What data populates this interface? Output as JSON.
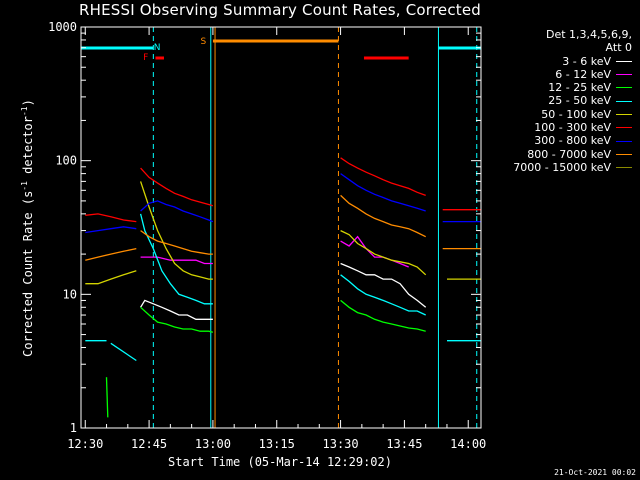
{
  "header": {
    "title": "RHESSI Observing Summary Count Rates, Corrected",
    "footer_date": "21-Oct-2021 00:02"
  },
  "legend": {
    "det_line1": "Det 1,3,4,5,6,9,",
    "det_line2": "Att 0",
    "items": [
      {
        "label": "3 - 6 keV",
        "color": "#ffffff"
      },
      {
        "label": "6 - 12 keV",
        "color": "#ff00ff"
      },
      {
        "label": "12 - 25 keV",
        "color": "#00ff00"
      },
      {
        "label": "25 - 50 keV",
        "color": "#00ffff"
      },
      {
        "label": "50 - 100 keV",
        "color": "#d4d400"
      },
      {
        "label": "100 - 300 keV",
        "color": "#ff0000"
      },
      {
        "label": "300 - 800 keV",
        "color": "#0000ff"
      },
      {
        "label": "800 - 7000 keV",
        "color": "#ff8c00"
      },
      {
        "label": "7000 - 15000 keV",
        "color": "#8b8b00"
      }
    ]
  },
  "chart_data": {
    "type": "line",
    "title": "RHESSI Observing Summary Count Rates, Corrected",
    "xlabel": "Start Time (05-Mar-14 12:29:02)",
    "ylabel": "Corrected Count Rate (s⁻¹ detector⁻¹)",
    "ylabel_main": "Corrected Count Rate (s",
    "ylabel_sup1": "-1",
    "ylabel_mid": " detector",
    "ylabel_sup2": "-1",
    "ylabel_end": ")",
    "yscale": "log",
    "ylim": [
      1,
      1000
    ],
    "xlim_minutes": [
      -1,
      93
    ],
    "x_ticks": [
      {
        "m": 0,
        "label": "12:30"
      },
      {
        "m": 15,
        "label": "12:45"
      },
      {
        "m": 30,
        "label": "13:00"
      },
      {
        "m": 45,
        "label": "13:15"
      },
      {
        "m": 60,
        "label": "13:30"
      },
      {
        "m": 75,
        "label": "13:45"
      },
      {
        "m": 90,
        "label": "14:00"
      }
    ],
    "y_ticks": [
      {
        "v": 1,
        "label": "1"
      },
      {
        "v": 10,
        "label": "10"
      },
      {
        "v": 100,
        "label": "100"
      },
      {
        "v": 1000,
        "label": "1000"
      }
    ],
    "x_time_note": "x values are minutes after 12:30",
    "series": [
      {
        "name": "3 - 6 keV",
        "color": "#ffffff",
        "segments": [
          [
            [
              13,
              8
            ],
            [
              14,
              9
            ],
            [
              16,
              8.5
            ],
            [
              18,
              8
            ],
            [
              20,
              7.5
            ],
            [
              22,
              7
            ],
            [
              24,
              7
            ],
            [
              26,
              6.5
            ],
            [
              28,
              6.5
            ],
            [
              30,
              6.5
            ]
          ],
          [
            [
              60,
              17
            ],
            [
              62,
              16
            ],
            [
              64,
              15
            ],
            [
              66,
              14
            ],
            [
              68,
              14
            ],
            [
              70,
              13
            ],
            [
              72,
              13
            ],
            [
              74,
              12
            ],
            [
              76,
              10
            ],
            [
              78,
              9
            ],
            [
              80,
              8
            ]
          ]
        ]
      },
      {
        "name": "6 - 12 keV",
        "color": "#ff00ff",
        "segments": [
          [
            [
              13,
              19
            ],
            [
              15,
              19
            ],
            [
              17,
              19
            ],
            [
              20,
              18
            ],
            [
              23,
              18
            ],
            [
              26,
              18
            ],
            [
              28,
              17
            ],
            [
              30,
              17
            ]
          ],
          [
            [
              60,
              25
            ],
            [
              62,
              23
            ],
            [
              64,
              27
            ],
            [
              66,
              22
            ],
            [
              68,
              19
            ],
            [
              70,
              19
            ],
            [
              72,
              18
            ],
            [
              74,
              17
            ],
            [
              76,
              16
            ]
          ]
        ]
      },
      {
        "name": "12 - 25 keV",
        "color": "#00ff00",
        "segments": [
          [
            [
              5,
              2.4
            ],
            [
              5.3,
              1.2
            ]
          ],
          [
            [
              13,
              8
            ],
            [
              15,
              7
            ],
            [
              17,
              6.2
            ],
            [
              19,
              6
            ],
            [
              21,
              5.7
            ],
            [
              23,
              5.5
            ],
            [
              25,
              5.5
            ],
            [
              27,
              5.3
            ],
            [
              29,
              5.3
            ],
            [
              30,
              5.2
            ]
          ],
          [
            [
              60,
              9
            ],
            [
              62,
              8
            ],
            [
              64,
              7.3
            ],
            [
              66,
              7
            ],
            [
              68,
              6.5
            ],
            [
              70,
              6.2
            ],
            [
              72,
              6
            ],
            [
              74,
              5.8
            ],
            [
              76,
              5.6
            ],
            [
              78,
              5.5
            ],
            [
              80,
              5.3
            ]
          ]
        ]
      },
      {
        "name": "25 - 50 keV",
        "color": "#00ffff",
        "segments": [
          [
            [
              0,
              4.5
            ],
            [
              5,
              4.5
            ]
          ],
          [
            [
              6,
              4.3
            ],
            [
              12,
              3.2
            ]
          ],
          [
            [
              13,
              40
            ],
            [
              14,
              30
            ],
            [
              16,
              22
            ],
            [
              18,
              15
            ],
            [
              20,
              12
            ],
            [
              22,
              10
            ],
            [
              24,
              9.5
            ],
            [
              26,
              9
            ],
            [
              28,
              8.5
            ],
            [
              30,
              8.5
            ]
          ],
          [
            [
              60,
              14
            ],
            [
              62,
              12.5
            ],
            [
              64,
              11
            ],
            [
              66,
              10
            ],
            [
              68,
              9.5
            ],
            [
              70,
              9
            ],
            [
              72,
              8.5
            ],
            [
              74,
              8
            ],
            [
              76,
              7.5
            ],
            [
              78,
              7.5
            ],
            [
              80,
              7
            ]
          ],
          [
            [
              85,
              4.5
            ],
            [
              93,
              4.5
            ]
          ]
        ]
      },
      {
        "name": "50 - 100 keV",
        "color": "#d4d400",
        "segments": [
          [
            [
              0,
              12
            ],
            [
              3,
              12
            ],
            [
              6,
              13
            ],
            [
              9,
              14
            ],
            [
              12,
              15
            ]
          ],
          [
            [
              13,
              70
            ],
            [
              15,
              45
            ],
            [
              17,
              30
            ],
            [
              19,
              22
            ],
            [
              21,
              17
            ],
            [
              23,
              15
            ],
            [
              25,
              14
            ],
            [
              27,
              13.5
            ],
            [
              29,
              13
            ],
            [
              30,
              13
            ]
          ],
          [
            [
              60,
              30
            ],
            [
              62,
              28
            ],
            [
              64,
              24
            ],
            [
              66,
              22
            ],
            [
              68,
              20
            ],
            [
              70,
              19
            ],
            [
              72,
              18
            ],
            [
              74,
              17.5
            ],
            [
              76,
              17
            ],
            [
              78,
              16
            ],
            [
              80,
              14
            ]
          ],
          [
            [
              85,
              13
            ],
            [
              93,
              13
            ]
          ]
        ]
      },
      {
        "name": "100 - 300 keV",
        "color": "#ff0000",
        "segments": [
          [
            [
              0,
              39
            ],
            [
              3,
              40
            ],
            [
              6,
              38
            ],
            [
              9,
              36
            ],
            [
              12,
              35
            ]
          ],
          [
            [
              13,
              88
            ],
            [
              15,
              75
            ],
            [
              17,
              68
            ],
            [
              19,
              62
            ],
            [
              21,
              57
            ],
            [
              23,
              54
            ],
            [
              25,
              51
            ],
            [
              27,
              49
            ],
            [
              29,
              47
            ],
            [
              30,
              46
            ]
          ],
          [
            [
              60,
              105
            ],
            [
              62,
              95
            ],
            [
              64,
              88
            ],
            [
              66,
              82
            ],
            [
              68,
              77
            ],
            [
              70,
              72
            ],
            [
              72,
              68
            ],
            [
              74,
              65
            ],
            [
              76,
              62
            ],
            [
              78,
              58
            ],
            [
              80,
              55
            ]
          ],
          [
            [
              84,
              43
            ],
            [
              93,
              43
            ]
          ]
        ]
      },
      {
        "name": "300 - 800 keV",
        "color": "#0000ff",
        "segments": [
          [
            [
              0,
              29
            ],
            [
              3,
              30
            ],
            [
              6,
              31
            ],
            [
              9,
              32
            ],
            [
              12,
              31
            ]
          ],
          [
            [
              13,
              42
            ],
            [
              15,
              48
            ],
            [
              17,
              50
            ],
            [
              19,
              47
            ],
            [
              21,
              45
            ],
            [
              23,
              42
            ],
            [
              25,
              40
            ],
            [
              27,
              38
            ],
            [
              29,
              36
            ],
            [
              30,
              35
            ]
          ],
          [
            [
              60,
              80
            ],
            [
              62,
              72
            ],
            [
              64,
              65
            ],
            [
              66,
              60
            ],
            [
              68,
              56
            ],
            [
              70,
              53
            ],
            [
              72,
              50
            ],
            [
              74,
              48
            ],
            [
              76,
              46
            ],
            [
              78,
              44
            ],
            [
              80,
              42
            ]
          ],
          [
            [
              84,
              35
            ],
            [
              93,
              35
            ]
          ]
        ]
      },
      {
        "name": "800 - 7000 keV",
        "color": "#ff8c00",
        "segments": [
          [
            [
              0,
              18
            ],
            [
              3,
              19
            ],
            [
              6,
              20
            ],
            [
              9,
              21
            ],
            [
              12,
              22
            ]
          ],
          [
            [
              13,
              30
            ],
            [
              15,
              27
            ],
            [
              17,
              25
            ],
            [
              19,
              24
            ],
            [
              21,
              23
            ],
            [
              23,
              22
            ],
            [
              25,
              21
            ],
            [
              27,
              20.5
            ],
            [
              29,
              20
            ],
            [
              30,
              20
            ]
          ],
          [
            [
              60,
              55
            ],
            [
              62,
              48
            ],
            [
              64,
              44
            ],
            [
              66,
              40
            ],
            [
              68,
              37
            ],
            [
              70,
              35
            ],
            [
              72,
              33
            ],
            [
              74,
              32
            ],
            [
              76,
              31
            ],
            [
              78,
              29
            ],
            [
              80,
              27
            ]
          ],
          [
            [
              84,
              22
            ],
            [
              93,
              22
            ]
          ]
        ]
      },
      {
        "name": "7000 - 15000 keV",
        "color": "#8b8b00",
        "segments": []
      }
    ],
    "annotations": [
      {
        "label": "N",
        "m": 17.5,
        "color": "#00ffff"
      },
      {
        "label": "F",
        "m": 15,
        "color": "#ff0000"
      },
      {
        "label": "S",
        "m": 28.5,
        "color": "#ff8c00"
      }
    ],
    "bars": [
      {
        "name": "cyan",
        "color": "#00ffff",
        "ranges": [
          [
            -1,
            16
          ],
          [
            83,
            93
          ]
        ]
      },
      {
        "name": "orange",
        "color": "#ff8c00",
        "ranges": [
          [
            30,
            59.5
          ]
        ]
      },
      {
        "name": "red",
        "color": "#ff0000",
        "ranges": [
          [
            16.5,
            18.5
          ],
          [
            65.5,
            76
          ]
        ]
      }
    ],
    "vlines": [
      {
        "m": 16,
        "color": "#00ffff",
        "style": "dashed"
      },
      {
        "m": 29.5,
        "color": "#00ffff",
        "style": "solid"
      },
      {
        "m": 30.5,
        "color": "#ff8c00",
        "style": "solid"
      },
      {
        "m": 59.5,
        "color": "#ff8c00",
        "style": "dashed"
      },
      {
        "m": 83,
        "color": "#00ffff",
        "style": "solid"
      },
      {
        "m": 92,
        "color": "#00ffff",
        "style": "dashed"
      }
    ]
  }
}
